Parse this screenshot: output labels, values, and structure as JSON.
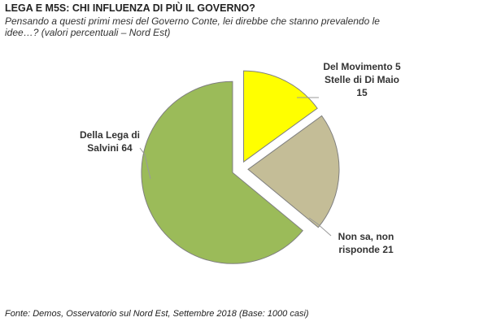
{
  "chart_data": {
    "type": "pie",
    "title": "LEGA E M5S: CHI INFLUENZA DI PIÙ IL GOVERNO?",
    "subtitle": "Pensando a questi primi mesi del Governo Conte, lei direbbe che stanno prevalendo le idee…? (valori percentuali – Nord Est)",
    "categories": [
      "Del Movimento 5 Stelle di Di Maio",
      "Non sa, non risponde",
      "Della Lega di Salvini"
    ],
    "values": [
      15,
      21,
      64
    ],
    "colors": [
      "#ffff00",
      "#c4bd97",
      "#9bbb59"
    ],
    "source": "Fonte: Demos, Osservatorio sul Nord Est, Settembre  2018 (Base: 1000 casi)"
  }
}
